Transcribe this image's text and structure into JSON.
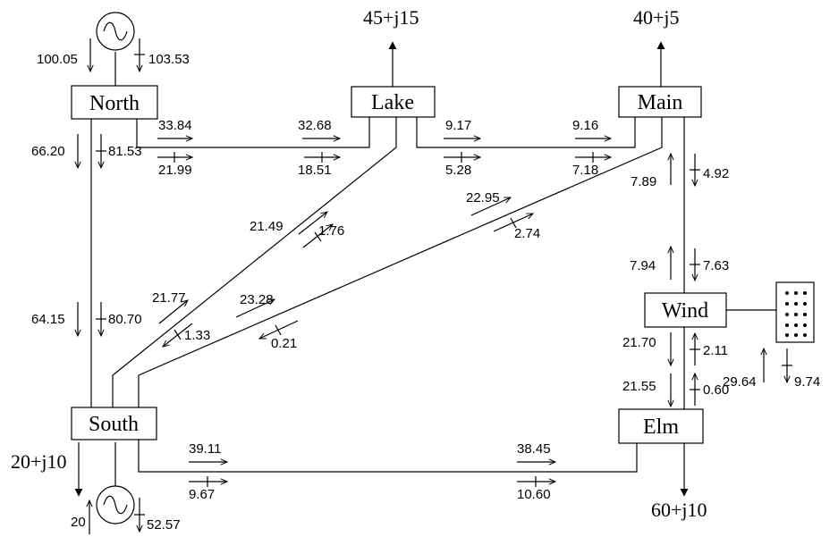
{
  "buses": {
    "north": "North",
    "lake": "Lake",
    "main": "Main",
    "south": "South",
    "wind": "Wind",
    "elm": "Elm"
  },
  "loads": {
    "lake": "45+j15",
    "main": "40+j5",
    "south": "20+j10",
    "elm": "60+j10"
  },
  "flows": {
    "north_gen_p": "100.05",
    "north_gen_q": "103.53",
    "north_lake_p_from": "33.84",
    "north_lake_p_to": "32.68",
    "north_lake_q_from": "21.99",
    "north_lake_q_to": "18.51",
    "lake_main_p_from": "9.17",
    "lake_main_p_to": "9.16",
    "lake_main_q_from": "5.28",
    "lake_main_q_to": "7.18",
    "north_south_p_from": "66.20",
    "north_south_q_from": "81.53",
    "north_south_p_to": "64.15",
    "north_south_q_to": "80.70",
    "south_lake_p_top": "21.49",
    "south_lake_q_top": "1.76",
    "south_lake_p_bottom": "21.77",
    "south_lake_q_bottom": "1.33",
    "south_main_p_top": "22.95",
    "south_main_q_top": "2.74",
    "south_main_p_bottom": "23.28",
    "south_main_q_bottom": "0.21",
    "main_wind_p_top": "7.89",
    "main_wind_q_top": "4.92",
    "main_wind_p_bottom": "7.94",
    "main_wind_q_bottom": "7.63",
    "wind_elm_p_top": "21.70",
    "wind_elm_q_top": "2.11",
    "wind_elm_p_bottom": "21.55",
    "wind_elm_q_bottom": "0.60",
    "wind_gen_p": "29.64",
    "wind_gen_q": "9.74",
    "south_elm_p_from": "39.11",
    "south_elm_p_to": "38.45",
    "south_elm_q_from": "9.67",
    "south_elm_q_to": "10.60",
    "south_gen_p": "20",
    "south_gen_q": "52.57"
  }
}
